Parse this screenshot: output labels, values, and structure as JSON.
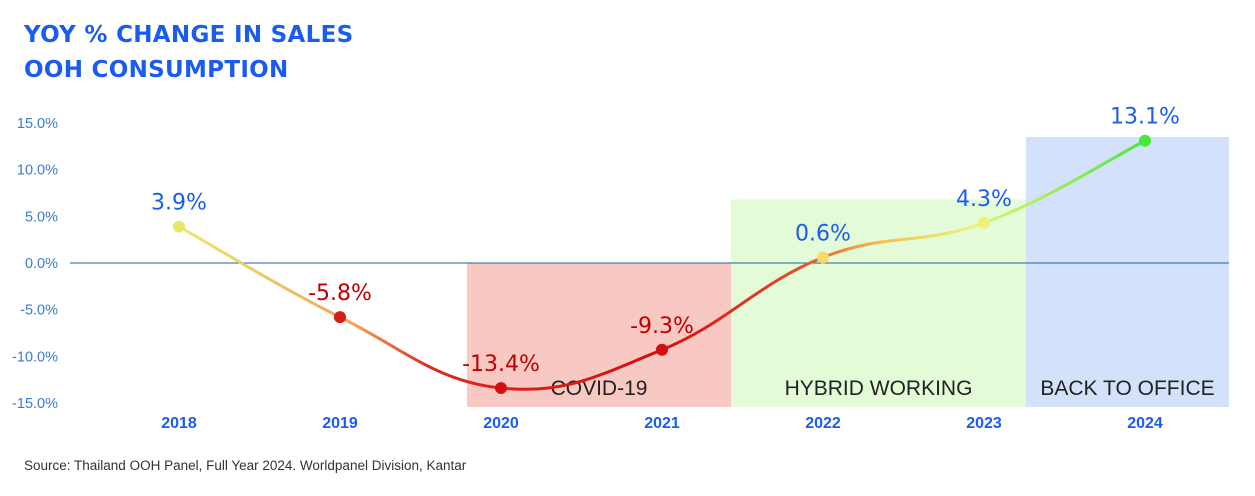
{
  "title_lines": [
    "YOY % CHANGE IN SALES",
    "OOH CONSUMPTION"
  ],
  "source": "Source: Thailand OOH Panel, Full Year 2024. Worldpanel Division, Kantar",
  "colors": {
    "title": "#1a5cf2",
    "tick_label": "#3a7bd5",
    "year_label": "#1a5cf2",
    "positive_label": "#1a5cf2",
    "negative_label": "#c00000",
    "zero_line": "#1f5fa8",
    "covid_band": "#f8c9c3",
    "hybrid_band": "#e3fbd7",
    "office_band": "#d4e1fa"
  },
  "chart_data": {
    "type": "line",
    "title": "YOY % CHANGE IN SALES OOH CONSUMPTION",
    "categories": [
      "2018",
      "2019",
      "2020",
      "2021",
      "2022",
      "2023",
      "2024"
    ],
    "values": [
      3.9,
      -5.8,
      -13.4,
      -9.3,
      0.6,
      4.3,
      13.1
    ],
    "labels": [
      "3.9%",
      "-5.8%",
      "-13.4%",
      "-9.3%",
      "0.6%",
      "4.3%",
      "13.1%"
    ],
    "ylim": [
      -15,
      15
    ],
    "yticks": [
      15,
      10,
      5,
      0,
      -5,
      -10,
      -15
    ],
    "ytick_labels": [
      "15.0%",
      "10.0%",
      "5.0%",
      "0.0%",
      "-5.0%",
      "-10.0%",
      "-15.0%"
    ],
    "grid": false,
    "periods": [
      {
        "label": "COVID-19",
        "from": "2020",
        "to": "2021"
      },
      {
        "label": "HYBRID WORKING",
        "from": "2022",
        "to": "2023"
      },
      {
        "label": "BACK TO OFFICE",
        "from": "2024",
        "to": "2024"
      }
    ]
  }
}
